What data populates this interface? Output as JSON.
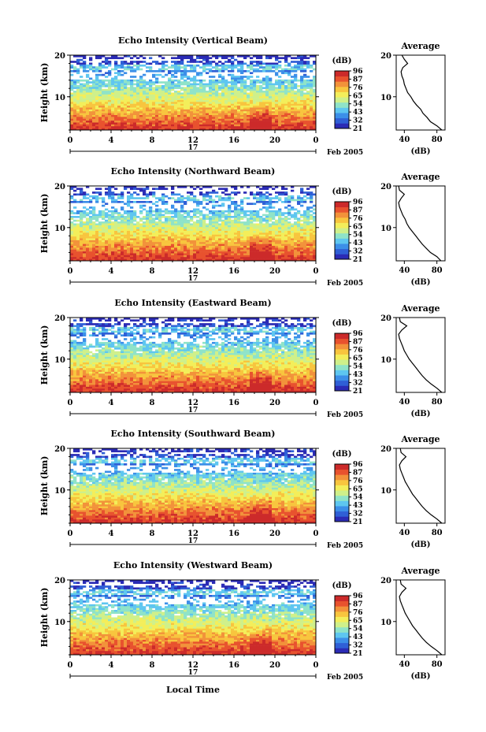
{
  "figure": {
    "footer": "Local Time",
    "date_label": "Feb 2005",
    "day_label": "17",
    "colorbar_unit": "(dB)",
    "colorbar_ticks": [
      "96",
      "87",
      "76",
      "65",
      "54",
      "43",
      "32",
      "21"
    ],
    "heatmap_ylabel": "Height (km)",
    "profile_title": "Average",
    "profile_xlabel": "(dB)",
    "colors": {
      "colormap": [
        "#2b2bb5",
        "#2f5fd6",
        "#3c8fe8",
        "#5ec6f0",
        "#8fe3c8",
        "#cff08a",
        "#f3ee5a",
        "#f8c53e",
        "#f2923a",
        "#e8522e",
        "#cc2a2a"
      ]
    }
  },
  "chart_data": [
    {
      "type": "heatmap",
      "title": "Echo Intensity (Vertical Beam)",
      "xlabel": "",
      "ylabel": "Height (km)",
      "x_ticks": [
        "0",
        "4",
        "8",
        "12",
        "16",
        "20",
        "0"
      ],
      "y_ticks": [
        "20",
        "10"
      ],
      "xlim": [
        0,
        24
      ],
      "ylim": [
        2,
        20
      ],
      "colorbar": {
        "unit": "(dB)",
        "ticks": [
          96,
          87,
          76,
          65,
          54,
          43,
          32,
          21
        ]
      },
      "profile": {
        "title": "Average",
        "xlabel": "(dB)",
        "x_ticks": [
          "40",
          "80"
        ],
        "y_ticks": [
          "20",
          "10"
        ],
        "height_km": [
          2,
          3,
          4,
          5,
          6,
          7,
          8,
          9,
          10,
          11,
          12,
          13,
          14,
          15,
          16,
          17,
          18,
          19,
          20
        ],
        "avg_db": [
          86,
          80,
          72,
          68,
          63,
          60,
          55,
          51,
          48,
          44,
          42,
          40,
          39,
          37,
          36,
          38,
          44,
          40,
          37
        ]
      }
    },
    {
      "type": "heatmap",
      "title": "Echo Intensity (Northward Beam)",
      "xlabel": "",
      "ylabel": "Height (km)",
      "x_ticks": [
        "0",
        "4",
        "8",
        "12",
        "16",
        "20",
        "0"
      ],
      "y_ticks": [
        "20",
        "10"
      ],
      "xlim": [
        0,
        24
      ],
      "ylim": [
        2,
        20
      ],
      "colorbar": {
        "unit": "(dB)",
        "ticks": [
          96,
          87,
          76,
          65,
          54,
          43,
          32,
          21
        ]
      },
      "profile": {
        "title": "Average",
        "xlabel": "(dB)",
        "x_ticks": [
          "40",
          "80"
        ],
        "y_ticks": [
          "20",
          "10"
        ],
        "height_km": [
          2,
          3,
          4,
          5,
          6,
          7,
          8,
          9,
          10,
          11,
          12,
          13,
          14,
          15,
          16,
          17,
          18,
          19,
          20
        ],
        "avg_db": [
          85,
          80,
          72,
          67,
          62,
          58,
          54,
          50,
          46,
          43,
          41,
          38,
          36,
          34,
          33,
          36,
          40,
          34,
          33
        ]
      }
    },
    {
      "type": "heatmap",
      "title": "Echo Intensity (Eastward Beam)",
      "xlabel": "",
      "ylabel": "Height (km)",
      "x_ticks": [
        "0",
        "4",
        "8",
        "12",
        "16",
        "20",
        "0"
      ],
      "y_ticks": [
        "20",
        "10"
      ],
      "xlim": [
        0,
        24
      ],
      "ylim": [
        2,
        20
      ],
      "colorbar": {
        "unit": "(dB)",
        "ticks": [
          96,
          87,
          76,
          65,
          54,
          43,
          32,
          21
        ]
      },
      "profile": {
        "title": "Average",
        "xlabel": "(dB)",
        "x_ticks": [
          "40",
          "80"
        ],
        "y_ticks": [
          "20",
          "10"
        ],
        "height_km": [
          2,
          3,
          4,
          5,
          6,
          7,
          8,
          9,
          10,
          11,
          12,
          13,
          14,
          15,
          16,
          17,
          18,
          19,
          20
        ],
        "avg_db": [
          86,
          80,
          73,
          67,
          62,
          58,
          54,
          50,
          46,
          43,
          40,
          38,
          36,
          34,
          33,
          37,
          43,
          35,
          34
        ]
      }
    },
    {
      "type": "heatmap",
      "title": "Echo Intensity (Southward Beam)",
      "xlabel": "",
      "ylabel": "Height (km)",
      "x_ticks": [
        "0",
        "4",
        "8",
        "12",
        "16",
        "20",
        "0"
      ],
      "y_ticks": [
        "20",
        "10"
      ],
      "xlim": [
        0,
        24
      ],
      "ylim": [
        2,
        20
      ],
      "colorbar": {
        "unit": "(dB)",
        "ticks": [
          96,
          87,
          76,
          65,
          54,
          43,
          32,
          21
        ]
      },
      "profile": {
        "title": "Average",
        "xlabel": "(dB)",
        "x_ticks": [
          "40",
          "80"
        ],
        "y_ticks": [
          "20",
          "10"
        ],
        "height_km": [
          2,
          3,
          4,
          5,
          6,
          7,
          8,
          9,
          10,
          11,
          12,
          13,
          14,
          15,
          16,
          17,
          18,
          19,
          20
        ],
        "avg_db": [
          86,
          80,
          73,
          67,
          62,
          58,
          54,
          50,
          47,
          44,
          41,
          39,
          37,
          35,
          34,
          37,
          42,
          36,
          35
        ]
      }
    },
    {
      "type": "heatmap",
      "title": "Echo Intensity (Westward Beam)",
      "xlabel": "Local Time",
      "ylabel": "Height (km)",
      "x_ticks": [
        "0",
        "4",
        "8",
        "12",
        "16",
        "20",
        "0"
      ],
      "y_ticks": [
        "20",
        "10"
      ],
      "xlim": [
        0,
        24
      ],
      "ylim": [
        2,
        20
      ],
      "colorbar": {
        "unit": "(dB)",
        "ticks": [
          96,
          87,
          76,
          65,
          54,
          43,
          32,
          21
        ]
      },
      "profile": {
        "title": "Average",
        "xlabel": "(dB)",
        "x_ticks": [
          "40",
          "80"
        ],
        "y_ticks": [
          "20",
          "10"
        ],
        "height_km": [
          2,
          3,
          4,
          5,
          6,
          7,
          8,
          9,
          10,
          11,
          12,
          13,
          14,
          15,
          16,
          17,
          18,
          19,
          20
        ],
        "avg_db": [
          86,
          80,
          73,
          67,
          62,
          58,
          54,
          50,
          47,
          44,
          41,
          39,
          37,
          35,
          34,
          37,
          42,
          36,
          35
        ]
      }
    }
  ]
}
